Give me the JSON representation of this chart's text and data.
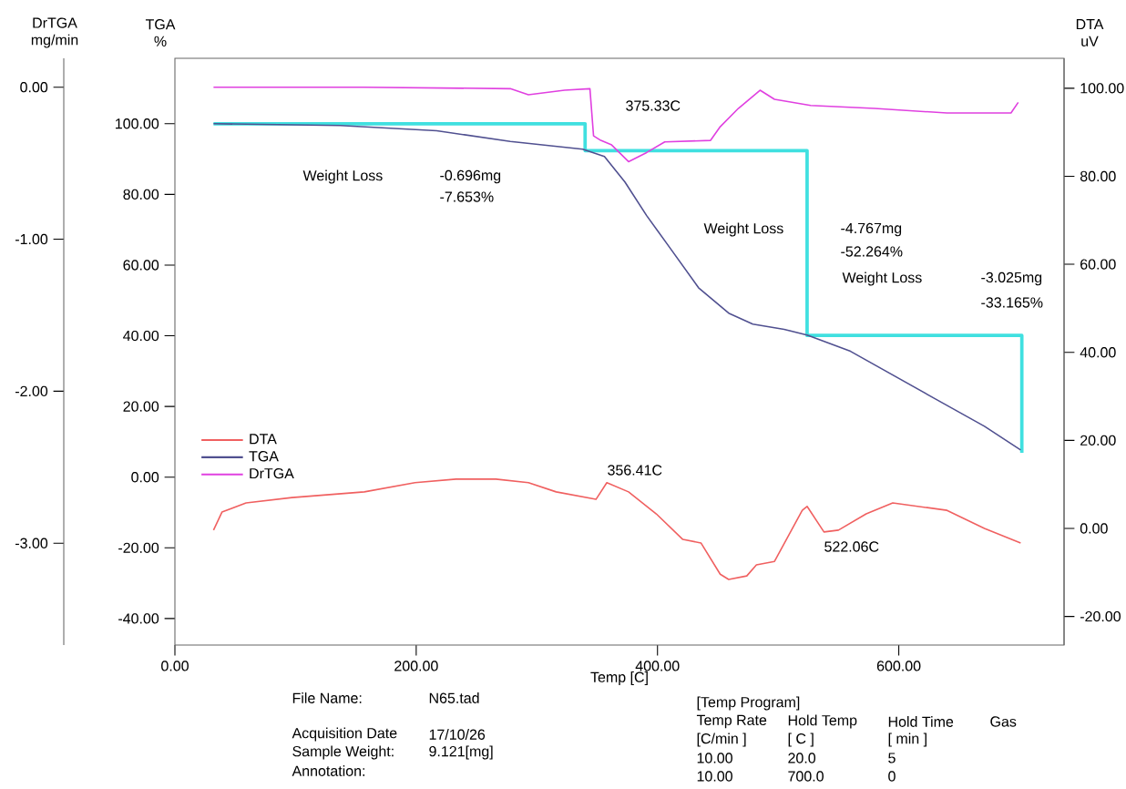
{
  "chart_data": {
    "type": "line",
    "xlabel": "Temp  [C]",
    "ylabel": "TGA %",
    "y2label": "DTA uV",
    "y3label": "DrTGA mg/min",
    "xlim": [
      0,
      737
    ],
    "xticks": [
      {
        "value": 0,
        "label": "0.00"
      },
      {
        "value": 200,
        "label": "200.00"
      },
      {
        "value": 400,
        "label": "400.00"
      },
      {
        "value": 600,
        "label": "600.00"
      }
    ],
    "ylim": [
      -47.5,
      118.5
    ],
    "yticks": [
      {
        "value": -40,
        "label": "-40.00"
      },
      {
        "value": -20,
        "label": "-20.00"
      },
      {
        "value": 0,
        "label": "0.00"
      },
      {
        "value": 20,
        "label": "20.00"
      },
      {
        "value": 40,
        "label": "40.00"
      },
      {
        "value": 60,
        "label": "60.00"
      },
      {
        "value": 80,
        "label": "80.00"
      },
      {
        "value": 100,
        "label": "100.00"
      }
    ],
    "y2lim": [
      -26.5,
      106.8
    ],
    "y2ticks": [
      {
        "value": -20,
        "label": "-20.00"
      },
      {
        "value": 0,
        "label": "0.00"
      },
      {
        "value": 20,
        "label": "20.00"
      },
      {
        "value": 40,
        "label": "40.00"
      },
      {
        "value": 60,
        "label": "60.00"
      },
      {
        "value": 80,
        "label": "80.00"
      },
      {
        "value": 100,
        "label": "100.00"
      }
    ],
    "y3lim": [
      -3.67,
      0.19
    ],
    "y3ticks": [
      {
        "value": -3,
        "label": "-3.00"
      },
      {
        "value": -2,
        "label": "-2.00"
      },
      {
        "value": -1,
        "label": "-1.00"
      },
      {
        "value": 0,
        "label": "0.00"
      }
    ],
    "legend": "left",
    "series": [
      {
        "name": "DTA",
        "color": "#f06060",
        "axis": "y2",
        "x": [
          32,
          39,
          59,
          97,
          157,
          199,
          233,
          266,
          293,
          316,
          349,
          358,
          376,
          399,
          421,
          436,
          452,
          459,
          474,
          482,
          497,
          520,
          524,
          538,
          550,
          573,
          595,
          640,
          671,
          701
        ],
        "values": [
          -0.4,
          3.7,
          5.8,
          7.0,
          8.3,
          10.4,
          11.2,
          11.2,
          10.4,
          8.3,
          6.6,
          10.4,
          8.3,
          3.3,
          -2.5,
          -3.3,
          -10.4,
          -11.6,
          -10.8,
          -8.3,
          -7.5,
          4.1,
          5.0,
          -0.8,
          -0.4,
          3.3,
          5.8,
          4.1,
          0,
          -3.3
        ]
      },
      {
        "name": "TGA",
        "color": "#505090",
        "x": [
          32,
          137,
          217,
          278,
          338,
          356,
          373,
          391,
          409,
          434,
          459,
          479,
          505,
          524,
          560,
          630,
          671,
          701
        ],
        "values": [
          100,
          99.5,
          98,
          95,
          92.8,
          90.7,
          83.5,
          74,
          65.5,
          53.6,
          46.4,
          43.3,
          41.8,
          40.2,
          35.6,
          22.2,
          14.4,
          7.7
        ]
      },
      {
        "name": "DrTGA",
        "color": "#e040e0",
        "axis": "y3",
        "x": [
          32,
          157,
          278,
          293,
          323,
          344,
          347,
          353,
          362,
          376,
          391,
          406,
          444,
          452,
          467,
          485,
          497,
          527,
          580,
          640,
          693,
          699
        ],
        "values": [
          0.0,
          0.0,
          -0.01,
          -0.05,
          -0.02,
          -0.01,
          -0.32,
          -0.35,
          -0.38,
          -0.49,
          -0.43,
          -0.36,
          -0.35,
          -0.26,
          -0.14,
          -0.02,
          -0.08,
          -0.12,
          -0.14,
          -0.17,
          -0.17,
          -0.1
        ]
      },
      {
        "color": "#40e0e0",
        "x": [
          32,
          340,
          340,
          524,
          524,
          702,
          702
        ],
        "values": [
          100,
          100,
          92.4,
          92.4,
          40.1,
          40.1,
          6.9
        ]
      }
    ],
    "annotations": [
      "Weight Loss",
      "-0.696mg",
      "-7.653%",
      "Weight Loss",
      "-4.767mg",
      "-52.264%",
      "Weight Loss",
      "-3.025mg",
      "-33.165%",
      "375.33C",
      "356.41C",
      "522.06C",
      "File Name:",
      "N65.tad",
      "Acquisition Date",
      "17/10/26",
      "Sample Weight:",
      "9.121[mg]",
      "Annotation:",
      "[Temp Program]",
      "Temp Rate",
      "Hold Temp",
      "Hold Time",
      "Gas",
      "[C/min ]",
      "[ C ]",
      "[ min ]",
      "10.00",
      "20.0",
      "5",
      "10.00",
      "700.0",
      "0"
    ]
  }
}
